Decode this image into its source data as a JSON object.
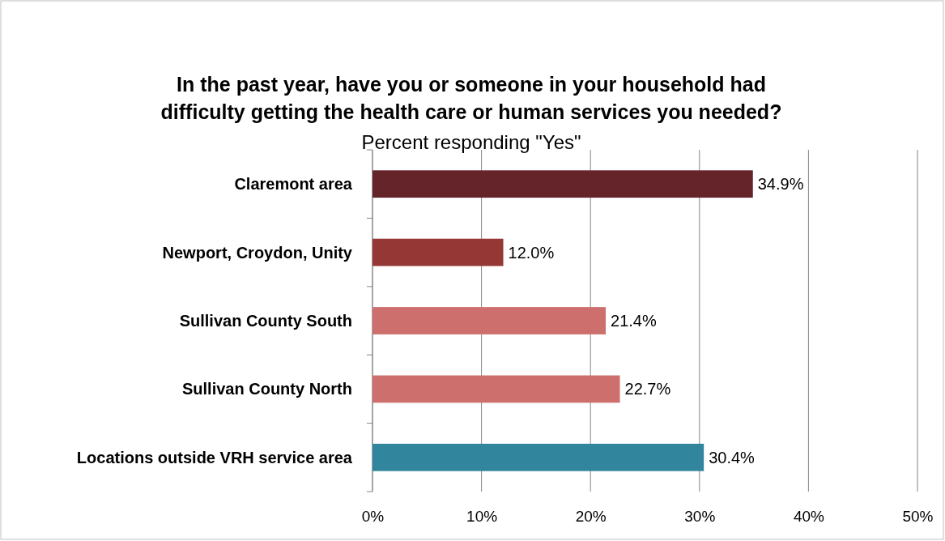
{
  "chart_data": {
    "type": "bar",
    "orientation": "horizontal",
    "title": "In the past year, have you or someone in your household had difficulty getting the health care or human services you needed?",
    "subtitle": "Percent responding \"Yes\"",
    "categories": [
      "Claremont area",
      "Newport, Croydon, Unity",
      "Sullivan County South",
      "Sullivan County North",
      "Locations outside VRH service area"
    ],
    "values": [
      34.9,
      12.0,
      21.4,
      22.7,
      30.4
    ],
    "value_labels": [
      "34.9%",
      "12.0%",
      "21.4%",
      "22.7%",
      "30.4%"
    ],
    "colors": [
      "#65232a",
      "#953735",
      "#cd706d",
      "#cd706d",
      "#31859c"
    ],
    "xlim": [
      0,
      50
    ],
    "xticks": [
      {
        "value": 0,
        "label": "0%"
      },
      {
        "value": 10,
        "label": "10%"
      },
      {
        "value": 20,
        "label": "20%"
      },
      {
        "value": 30,
        "label": "30%"
      },
      {
        "value": 40,
        "label": "40%"
      },
      {
        "value": 50,
        "label": "50%"
      }
    ],
    "grid": "x"
  }
}
